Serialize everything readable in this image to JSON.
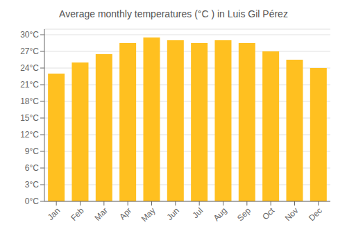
{
  "chart_data": {
    "type": "bar",
    "title": "Average monthly temperatures (°C ) in Luis Gil Pérez",
    "categories": [
      "Jan",
      "Feb",
      "Mar",
      "Apr",
      "May",
      "Jun",
      "Jul",
      "Aug",
      "Sep",
      "Oct",
      "Nov",
      "Dec"
    ],
    "values": [
      23.0,
      25.0,
      26.5,
      28.5,
      29.5,
      29.0,
      28.5,
      29.0,
      28.5,
      27.0,
      25.5,
      24.0
    ],
    "color": "#FFC020",
    "ylim": [
      0,
      31
    ],
    "yticks": [
      {
        "value": 0,
        "label": "0°C"
      },
      {
        "value": 3,
        "label": "3°C"
      },
      {
        "value": 6,
        "label": "6°C"
      },
      {
        "value": 9,
        "label": "9°C"
      },
      {
        "value": 12,
        "label": "12°C"
      },
      {
        "value": 15,
        "label": "15°C"
      },
      {
        "value": 18,
        "label": "18°C"
      },
      {
        "value": 21,
        "label": "21°C"
      },
      {
        "value": 24,
        "label": "24°C"
      },
      {
        "value": 27,
        "label": "27°C"
      },
      {
        "value": 30,
        "label": "30°C"
      }
    ],
    "grid": true
  }
}
